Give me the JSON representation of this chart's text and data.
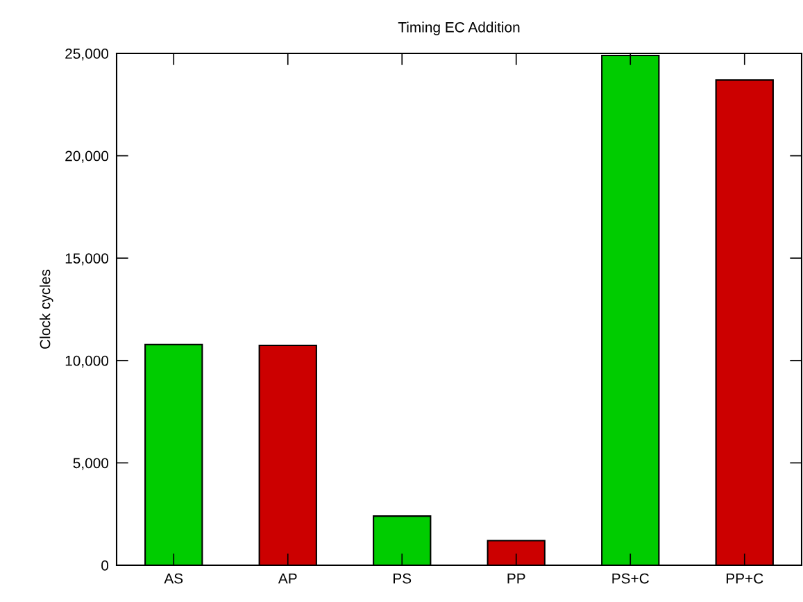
{
  "chart_data": {
    "type": "bar",
    "title": "Timing EC Addition",
    "ylabel": "Clock cycles",
    "categories": [
      "AS",
      "AP",
      "PS",
      "PP",
      "PS+C",
      "PP+C"
    ],
    "values": [
      10780,
      10740,
      2400,
      1200,
      24900,
      23700
    ],
    "colors": [
      "#00cc00",
      "#cc0000",
      "#00cc00",
      "#cc0000",
      "#00cc00",
      "#cc0000"
    ],
    "ylim": [
      0,
      25000
    ],
    "yticks": [
      {
        "value": 0,
        "label": "0"
      },
      {
        "value": 5000,
        "label": "5,000"
      },
      {
        "value": 10000,
        "label": "10,000"
      },
      {
        "value": 15000,
        "label": "15,000"
      },
      {
        "value": 20000,
        "label": "20,000"
      },
      {
        "value": 25000,
        "label": "25,000"
      }
    ],
    "grid": false,
    "legend": false
  }
}
